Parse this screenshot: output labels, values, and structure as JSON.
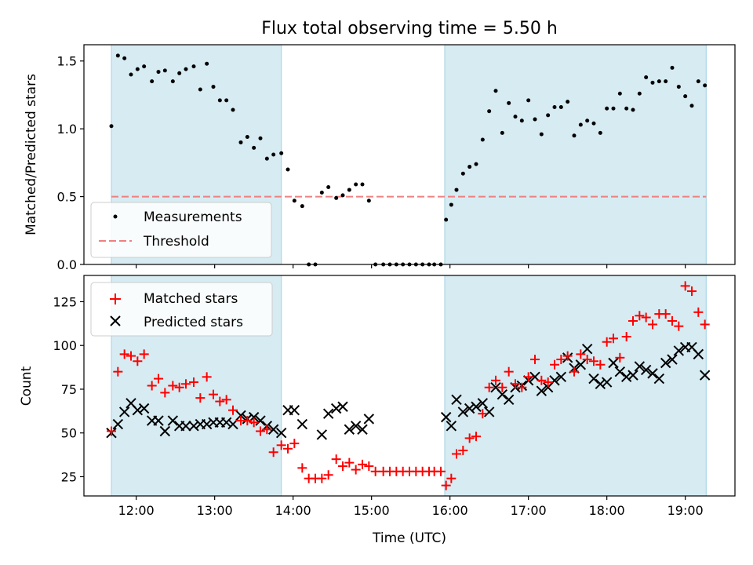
{
  "chart_data": [
    {
      "type": "scatter",
      "title": "Flux total observing time = 5.50 h",
      "xlabel": "",
      "ylabel": "Matched/Predicted stars",
      "xlim": [
        "11:20",
        "19:38"
      ],
      "ylim": [
        0,
        1.62
      ],
      "x_ticks": [
        "12:00",
        "13:00",
        "14:00",
        "15:00",
        "16:00",
        "17:00",
        "18:00",
        "19:00"
      ],
      "y_ticks": [
        0.0,
        0.5,
        1.0,
        1.5
      ],
      "y_tick_labels": [
        "0.0",
        "0.5",
        "1.0",
        "1.5"
      ],
      "shaded_intervals": [
        [
          "11:41",
          "13:51"
        ],
        [
          "15:56",
          "19:16"
        ]
      ],
      "shade_color": "#add8e6",
      "threshold": {
        "name": "Threshold",
        "value": 0.5,
        "color": "#f08080",
        "style": "dashed"
      },
      "legend": {
        "placement": "lower-left",
        "entries": [
          "Measurements",
          "Threshold"
        ]
      },
      "series": [
        {
          "name": "Measurements",
          "marker": "dot",
          "color": "#000000",
          "x": [
            "11:41",
            "11:46",
            "11:51",
            "11:56",
            "12:01",
            "12:06",
            "12:12",
            "12:17",
            "12:22",
            "12:28",
            "12:33",
            "12:38",
            "12:44",
            "12:49",
            "12:54",
            "12:59",
            "13:04",
            "13:09",
            "13:14",
            "13:20",
            "13:25",
            "13:30",
            "13:35",
            "13:40",
            "13:45",
            "13:51",
            "13:56",
            "14:01",
            "14:07",
            "14:12",
            "14:17",
            "14:22",
            "14:27",
            "14:33",
            "14:38",
            "14:43",
            "14:48",
            "14:53",
            "14:58",
            "15:03",
            "15:09",
            "15:14",
            "15:19",
            "15:24",
            "15:29",
            "15:34",
            "15:39",
            "15:44",
            "15:48",
            "15:53",
            "15:57",
            "16:01",
            "16:05",
            "16:10",
            "16:15",
            "16:20",
            "16:25",
            "16:30",
            "16:35",
            "16:40",
            "16:45",
            "16:50",
            "16:55",
            "17:00",
            "17:05",
            "17:10",
            "17:15",
            "17:20",
            "17:25",
            "17:30",
            "17:35",
            "17:40",
            "17:45",
            "17:50",
            "17:55",
            "18:00",
            "18:05",
            "18:10",
            "18:15",
            "18:20",
            "18:25",
            "18:30",
            "18:35",
            "18:40",
            "18:45",
            "18:50",
            "18:55",
            "19:00",
            "19:05",
            "19:10",
            "19:15"
          ],
          "y": [
            1.02,
            1.54,
            1.52,
            1.4,
            1.44,
            1.46,
            1.35,
            1.42,
            1.43,
            1.35,
            1.41,
            1.44,
            1.46,
            1.29,
            1.48,
            1.31,
            1.21,
            1.21,
            1.14,
            0.9,
            0.94,
            0.86,
            0.93,
            0.78,
            0.81,
            0.82,
            0.7,
            0.47,
            0.43,
            0.0,
            0.0,
            0.53,
            0.57,
            0.49,
            0.51,
            0.55,
            0.59,
            0.59,
            0.47,
            0.0,
            0.0,
            0.0,
            0.0,
            0.0,
            0.0,
            0.0,
            0.0,
            0.0,
            0.0,
            0.0,
            0.33,
            0.44,
            0.55,
            0.67,
            0.72,
            0.74,
            0.92,
            1.13,
            1.28,
            0.97,
            1.19,
            1.09,
            1.06,
            1.21,
            1.07,
            0.96,
            1.1,
            1.16,
            1.16,
            1.2,
            0.95,
            1.03,
            1.06,
            1.04,
            0.97,
            1.15,
            1.15,
            1.26,
            1.15,
            1.14,
            1.26,
            1.38,
            1.34,
            1.35,
            1.35,
            1.45,
            1.31,
            1.24,
            1.17,
            1.35,
            1.32
          ]
        }
      ]
    },
    {
      "type": "scatter",
      "title": "",
      "xlabel": "Time (UTC)",
      "ylabel": "Count",
      "xlim": [
        "11:20",
        "19:38"
      ],
      "ylim": [
        14,
        140
      ],
      "x_ticks": [
        "12:00",
        "13:00",
        "14:00",
        "15:00",
        "16:00",
        "17:00",
        "18:00",
        "19:00"
      ],
      "y_ticks": [
        25,
        50,
        75,
        100,
        125
      ],
      "shaded_intervals": [
        [
          "11:41",
          "13:51"
        ],
        [
          "15:56",
          "19:16"
        ]
      ],
      "shade_color": "#add8e6",
      "legend": {
        "placement": "upper-left",
        "entries": [
          "Matched stars",
          "Predicted stars"
        ]
      },
      "series": [
        {
          "name": "Matched stars",
          "marker": "plus",
          "color": "#ff0000",
          "x": [
            "11:41",
            "11:46",
            "11:51",
            "11:56",
            "12:01",
            "12:06",
            "12:12",
            "12:17",
            "12:22",
            "12:28",
            "12:33",
            "12:38",
            "12:44",
            "12:49",
            "12:54",
            "12:59",
            "13:04",
            "13:09",
            "13:14",
            "13:20",
            "13:25",
            "13:30",
            "13:35",
            "13:40",
            "13:45",
            "13:51",
            "13:56",
            "14:01",
            "14:07",
            "14:12",
            "14:17",
            "14:22",
            "14:27",
            "14:33",
            "14:38",
            "14:43",
            "14:48",
            "14:53",
            "14:58",
            "15:03",
            "15:09",
            "15:14",
            "15:19",
            "15:24",
            "15:29",
            "15:34",
            "15:39",
            "15:44",
            "15:48",
            "15:53",
            "15:57",
            "16:01",
            "16:05",
            "16:10",
            "16:15",
            "16:20",
            "16:25",
            "16:30",
            "16:35",
            "16:40",
            "16:45",
            "16:50",
            "16:55",
            "17:00",
            "17:05",
            "17:10",
            "17:15",
            "17:20",
            "17:25",
            "17:30",
            "17:35",
            "17:40",
            "17:45",
            "17:50",
            "17:55",
            "18:00",
            "18:05",
            "18:10",
            "18:15",
            "18:20",
            "18:25",
            "18:30",
            "18:35",
            "18:40",
            "18:45",
            "18:50",
            "18:55",
            "19:00",
            "19:05",
            "19:10",
            "19:15"
          ],
          "y": [
            51,
            85,
            95,
            94,
            91,
            95,
            77,
            81,
            73,
            77,
            76,
            78,
            79,
            70,
            82,
            72,
            68,
            69,
            63,
            57,
            57,
            56,
            51,
            52,
            39,
            43,
            41,
            44,
            30,
            24,
            24,
            24,
            26,
            35,
            31,
            33,
            29,
            32,
            31,
            28,
            28,
            28,
            28,
            28,
            28,
            28,
            28,
            28,
            28,
            28,
            20,
            24,
            38,
            40,
            47,
            48,
            61,
            76,
            80,
            76,
            85,
            78,
            76,
            82,
            92,
            80,
            79,
            89,
            92,
            94,
            85,
            95,
            92,
            91,
            89,
            102,
            104,
            93,
            105,
            114,
            117,
            116,
            112,
            118,
            118,
            114,
            111,
            134,
            131,
            119,
            112
          ]
        },
        {
          "name": "Predicted stars",
          "marker": "x",
          "color": "#000000",
          "x": [
            "11:41",
            "11:46",
            "11:51",
            "11:56",
            "12:01",
            "12:06",
            "12:12",
            "12:17",
            "12:22",
            "12:28",
            "12:33",
            "12:38",
            "12:44",
            "12:49",
            "12:54",
            "12:59",
            "13:04",
            "13:09",
            "13:14",
            "13:20",
            "13:25",
            "13:30",
            "13:35",
            "13:40",
            "13:45",
            "13:51",
            "13:56",
            "14:01",
            "14:07",
            "14:12",
            "14:17",
            "14:22",
            "14:27",
            "14:33",
            "14:38",
            "14:43",
            "14:48",
            "14:53",
            "14:58",
            "15:03",
            "15:09",
            "15:14",
            "15:19",
            "15:24",
            "15:29",
            "15:34",
            "15:39",
            "15:44",
            "15:48",
            "15:53",
            "15:57",
            "16:01",
            "16:05",
            "16:10",
            "16:15",
            "16:20",
            "16:25",
            "16:30",
            "16:35",
            "16:40",
            "16:45",
            "16:50",
            "16:55",
            "17:00",
            "17:05",
            "17:10",
            "17:15",
            "17:20",
            "17:25",
            "17:30",
            "17:35",
            "17:40",
            "17:45",
            "17:50",
            "17:55",
            "18:00",
            "18:05",
            "18:10",
            "18:15",
            "18:20",
            "18:25",
            "18:30",
            "18:35",
            "18:40",
            "18:45",
            "18:50",
            "18:55",
            "19:00",
            "19:05",
            "19:10",
            "19:15"
          ],
          "y": [
            50,
            55,
            62,
            67,
            63,
            64,
            57,
            57,
            51,
            57,
            54,
            54,
            54,
            55,
            55,
            56,
            56,
            56,
            55,
            60,
            58,
            59,
            57,
            54,
            52,
            50,
            63,
            63,
            55,
            null,
            null,
            49,
            61,
            64,
            65,
            52,
            54,
            52,
            58,
            null,
            null,
            null,
            null,
            null,
            null,
            null,
            null,
            null,
            null,
            null,
            59,
            54,
            69,
            62,
            64,
            65,
            67,
            62,
            76,
            72,
            69,
            76,
            77,
            80,
            82,
            74,
            76,
            80,
            82,
            93,
            87,
            89,
            98,
            81,
            78,
            79,
            90,
            85,
            82,
            83,
            88,
            86,
            84,
            81,
            90,
            92,
            97,
            99,
            99,
            95,
            83
          ]
        }
      ]
    }
  ]
}
